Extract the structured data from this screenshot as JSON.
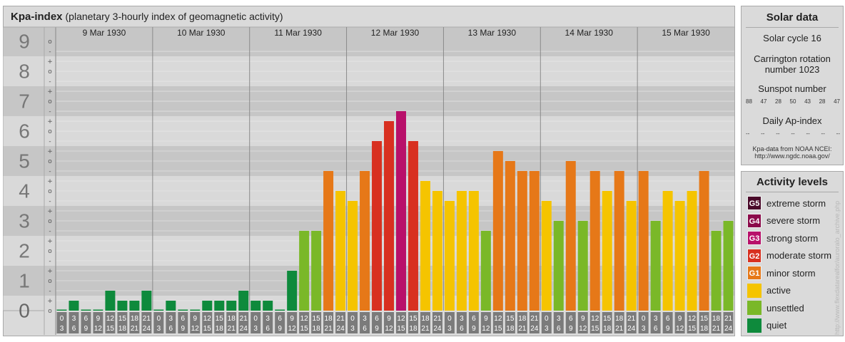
{
  "header": {
    "title": "Kpa-index",
    "subtitle": "(planetary 3-hourly index of geomagnetic activity)"
  },
  "solar": {
    "heading": "Solar data",
    "cycle": "Solar cycle 16",
    "carrington_1": "Carrington rotation",
    "carrington_2": "number 1023",
    "sunspot_heading": "Sunspot number",
    "sunspot_numbers": [
      "88",
      "47",
      "28",
      "50",
      "43",
      "28",
      "47"
    ],
    "ap_heading": "Daily Ap-index",
    "ap_values": [
      "--",
      "--",
      "--",
      "--",
      "--",
      "--",
      "--"
    ],
    "source_1": "Kpa-data from NOAA NCEI:",
    "source_2": "http://www.ngdc.noaa.gov/"
  },
  "levels": {
    "heading": "Activity levels",
    "items": [
      {
        "code": "G5",
        "label": "extreme storm",
        "color": "#4a0a2a"
      },
      {
        "code": "G4",
        "label": "severe storm",
        "color": "#8b0a4a"
      },
      {
        "code": "G3",
        "label": "strong storm",
        "color": "#b8106a"
      },
      {
        "code": "G2",
        "label": "moderate storm",
        "color": "#d83020"
      },
      {
        "code": "G1",
        "label": "minor storm",
        "color": "#e67818"
      },
      {
        "code": "",
        "label": "active",
        "color": "#f5c400"
      },
      {
        "code": "",
        "label": "unsettled",
        "color": "#7ab828"
      },
      {
        "code": "",
        "label": "quiet",
        "color": "#0e8a3c"
      }
    ]
  },
  "watermark": "http://www.flexdatarealfor/auroralo_archive.php",
  "chart_data": {
    "type": "bar",
    "title": "Kpa-index",
    "y_ticks": [
      "0",
      "1",
      "2",
      "3",
      "4",
      "5",
      "6",
      "7",
      "8",
      "9"
    ],
    "third_marks": [
      "-",
      "o",
      "+"
    ],
    "ylim": [
      0,
      9
    ],
    "days": [
      "9 Mar 1930",
      "10 Mar 1930",
      "11 Mar 1930",
      "12 Mar 1930",
      "13 Mar 1930",
      "14 Mar 1930",
      "15 Mar 1930"
    ],
    "interval_top": [
      "0",
      "3",
      "6",
      "9",
      "12",
      "15",
      "18",
      "21"
    ],
    "interval_bottom": [
      "3",
      "6",
      "9",
      "12",
      "15",
      "18",
      "21",
      "24"
    ],
    "colors": {
      "quiet": "#0e8a3c",
      "unsettled": "#7ab828",
      "active": "#f5c400",
      "G1": "#e67818",
      "G2": "#d83020",
      "G3": "#b8106a",
      "G4": "#8b0a4a",
      "G5": "#4a0a2a"
    },
    "values": [
      [
        0,
        0.333,
        0,
        0,
        0.667,
        0.333,
        0.333,
        0.667
      ],
      [
        0,
        0.333,
        0,
        0,
        0.333,
        0.333,
        0.333,
        0.667
      ],
      [
        0.333,
        0.333,
        0,
        1.333,
        2.667,
        2.667,
        4.667,
        4
      ],
      [
        3.667,
        4.667,
        5.667,
        6.333,
        6.667,
        5.667,
        4.333,
        4
      ],
      [
        3.667,
        4,
        4,
        2.667,
        5.333,
        5,
        4.667,
        4.667
      ],
      [
        3.667,
        3,
        5,
        3,
        4.667,
        4,
        4.667,
        3.667
      ],
      [
        4.667,
        3,
        4,
        3.667,
        4,
        4.667,
        2.667,
        3
      ]
    ]
  }
}
